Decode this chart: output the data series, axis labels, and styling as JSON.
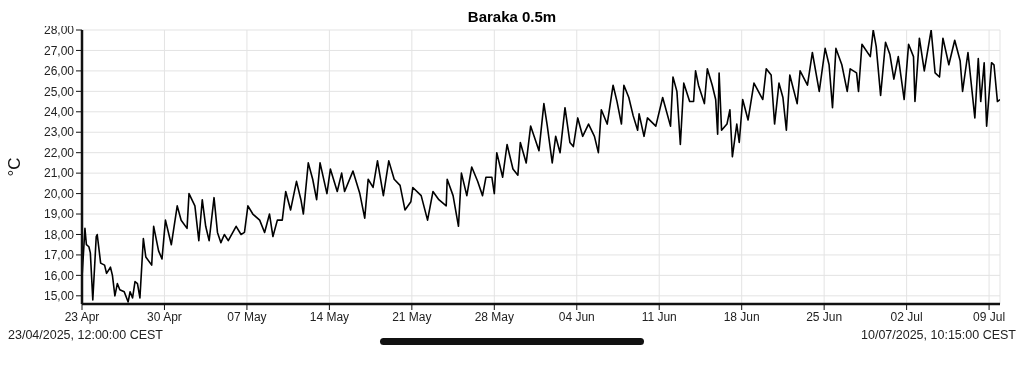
{
  "chart_data": {
    "type": "line",
    "title": "Baraka 0.5m",
    "ylabel": "°C",
    "color": "#000000",
    "grid": true,
    "annotations": [
      "23/04/2025, 12:00:00 CEST",
      "10/07/2025, 10:15:00 CEST"
    ],
    "xlim": [
      "2025-04-23T12:00",
      "2025-07-10T10:15"
    ],
    "xticks": [
      {
        "value": "2025-04-23T12:00",
        "label": "23 Apr"
      },
      {
        "value": "2025-04-30T12:00",
        "label": "30 Apr"
      },
      {
        "value": "2025-05-07T12:00",
        "label": "07 May"
      },
      {
        "value": "2025-05-14T12:00",
        "label": "14 May"
      },
      {
        "value": "2025-05-21T12:00",
        "label": "21 May"
      },
      {
        "value": "2025-05-28T12:00",
        "label": "28 May"
      },
      {
        "value": "2025-06-04T12:00",
        "label": "04 Jun"
      },
      {
        "value": "2025-06-11T12:00",
        "label": "11 Jun"
      },
      {
        "value": "2025-06-18T12:00",
        "label": "18 Jun"
      },
      {
        "value": "2025-06-25T12:00",
        "label": "25 Jun"
      },
      {
        "value": "2025-07-02T12:00",
        "label": "02 Jul"
      },
      {
        "value": "2025-07-09T12:00",
        "label": "09 Jul"
      }
    ],
    "ylim": [
      14.6,
      28
    ],
    "yticks": [
      {
        "value": 15,
        "label": "15,00"
      },
      {
        "value": 16,
        "label": "16,00"
      },
      {
        "value": 17,
        "label": "17,00"
      },
      {
        "value": 18,
        "label": "18,00"
      },
      {
        "value": 19,
        "label": "19,00"
      },
      {
        "value": 20,
        "label": "20,00"
      },
      {
        "value": 21,
        "label": "21,00"
      },
      {
        "value": 22,
        "label": "22,00"
      },
      {
        "value": 23,
        "label": "23,00"
      },
      {
        "value": 24,
        "label": "24,00"
      },
      {
        "value": 25,
        "label": "25,00"
      },
      {
        "value": 26,
        "label": "26,00"
      },
      {
        "value": 27,
        "label": "27,00"
      },
      {
        "value": 28,
        "label": "28,00"
      }
    ],
    "x": [
      "2025-04-23T12:00",
      "2025-04-23T18:00",
      "2025-04-23T21:00",
      "2025-04-24T02:00",
      "2025-04-24T05:00",
      "2025-04-24T10:00",
      "2025-04-24T17:00",
      "2025-04-24T19:00",
      "2025-04-25T02:00",
      "2025-04-25T10:00",
      "2025-04-25T14:00",
      "2025-04-25T22:00",
      "2025-04-26T02:00",
      "2025-04-26T07:00",
      "2025-04-26T12:00",
      "2025-04-26T17:00",
      "2025-04-27T02:00",
      "2025-04-27T10:00",
      "2025-04-27T14:00",
      "2025-04-27T19:00",
      "2025-04-28T00:00",
      "2025-04-28T05:00",
      "2025-04-28T10:00",
      "2025-04-28T17:00",
      "2025-04-28T22:00",
      "2025-04-29T10:00",
      "2025-04-29T14:00",
      "2025-04-30T00:00",
      "2025-04-30T07:00",
      "2025-04-30T14:00",
      "2025-05-01T02:00",
      "2025-05-01T14:00",
      "2025-05-01T22:00",
      "2025-05-02T10:00",
      "2025-05-02T14:00",
      "2025-05-03T02:00",
      "2025-05-03T10:00",
      "2025-05-03T17:00",
      "2025-05-04T00:00",
      "2025-05-04T07:00",
      "2025-05-04T17:00",
      "2025-05-05T00:00",
      "2025-05-05T07:00",
      "2025-05-05T14:00",
      "2025-05-05T22:00",
      "2025-05-06T14:00",
      "2025-05-07T00:00",
      "2025-05-07T07:00",
      "2025-05-07T14:00",
      "2025-05-08T00:00",
      "2025-05-08T14:00",
      "2025-05-09T00:00",
      "2025-05-09T10:00",
      "2025-05-09T17:00",
      "2025-05-10T02:00",
      "2025-05-10T12:00",
      "2025-05-10T19:00",
      "2025-05-11T05:00",
      "2025-05-11T17:00",
      "2025-05-12T02:00",
      "2025-05-12T07:00",
      "2025-05-12T17:00",
      "2025-05-13T02:00",
      "2025-05-13T10:00",
      "2025-05-13T17:00",
      "2025-05-14T07:00",
      "2025-05-14T14:00",
      "2025-05-15T04:00",
      "2025-05-15T13:00",
      "2025-05-15T19:00",
      "2025-05-16T12:00",
      "2025-05-17T02:00",
      "2025-05-17T12:00",
      "2025-05-17T19:00",
      "2025-05-18T05:00",
      "2025-05-18T14:00",
      "2025-05-19T02:00",
      "2025-05-19T13:00",
      "2025-05-20T00:00",
      "2025-05-20T12:00",
      "2025-05-20T22:00",
      "2025-05-21T10:00",
      "2025-05-21T14:00",
      "2025-05-22T07:00",
      "2025-05-22T20:00",
      "2025-05-23T07:00",
      "2025-05-23T19:00",
      "2025-05-24T10:00",
      "2025-05-24T12:00",
      "2025-05-25T00:00",
      "2025-05-25T11:00",
      "2025-05-25T17:00",
      "2025-05-26T04:00",
      "2025-05-26T14:00",
      "2025-05-27T02:00",
      "2025-05-27T12:00",
      "2025-05-27T19:00",
      "2025-05-28T07:00",
      "2025-05-28T12:00",
      "2025-05-28T17:00",
      "2025-05-29T05:00",
      "2025-05-29T14:00",
      "2025-05-30T02:00",
      "2025-05-30T12:00",
      "2025-05-30T17:00",
      "2025-05-31T05:00",
      "2025-05-31T14:00",
      "2025-06-01T00:00",
      "2025-06-01T07:00",
      "2025-06-01T17:00",
      "2025-06-02T00:00",
      "2025-06-02T10:00",
      "2025-06-02T17:00",
      "2025-06-03T02:00",
      "2025-06-03T12:00",
      "2025-06-03T22:00",
      "2025-06-04T05:00",
      "2025-06-04T14:00",
      "2025-06-05T00:00",
      "2025-06-05T12:00",
      "2025-06-06T00:00",
      "2025-06-06T08:00",
      "2025-06-06T14:00",
      "2025-06-07T02:00",
      "2025-06-07T14:00",
      "2025-06-07T22:00",
      "2025-06-08T07:00",
      "2025-06-08T12:00",
      "2025-06-08T22:00",
      "2025-06-09T07:00",
      "2025-06-09T16:00",
      "2025-06-09T19:00",
      "2025-06-10T05:00",
      "2025-06-10T12:00",
      "2025-06-11T05:00",
      "2025-06-11T19:00",
      "2025-06-12T11:00",
      "2025-06-12T16:00",
      "2025-06-13T00:00",
      "2025-06-13T07:00",
      "2025-06-13T14:00",
      "2025-06-14T02:00",
      "2025-06-14T10:00",
      "2025-06-14T14:00",
      "2025-06-14T20:00",
      "2025-06-15T08:00",
      "2025-06-15T14:00",
      "2025-06-16T00:00",
      "2025-06-16T07:00",
      "2025-06-16T11:00",
      "2025-06-16T14:00",
      "2025-06-16T19:00",
      "2025-06-17T06:00",
      "2025-06-17T12:00",
      "2025-06-17T17:00",
      "2025-06-18T02:00",
      "2025-06-18T07:00",
      "2025-06-18T14:00",
      "2025-06-19T01:00",
      "2025-06-19T13:00",
      "2025-06-20T07:00",
      "2025-06-20T14:00",
      "2025-06-21T00:00",
      "2025-06-21T07:00",
      "2025-06-21T16:00",
      "2025-06-22T00:00",
      "2025-06-22T07:00",
      "2025-06-22T14:00",
      "2025-06-23T05:00",
      "2025-06-23T11:00",
      "2025-06-24T02:00",
      "2025-06-24T12:00",
      "2025-06-25T02:00",
      "2025-06-25T14:00",
      "2025-06-25T22:00",
      "2025-06-26T05:00",
      "2025-06-26T12:00",
      "2025-06-27T00:00",
      "2025-06-27T11:00",
      "2025-06-27T17:00",
      "2025-06-28T06:00",
      "2025-06-28T10:00",
      "2025-06-28T17:00",
      "2025-06-29T10:00",
      "2025-06-29T16:00",
      "2025-06-29T22:00",
      "2025-06-30T07:00",
      "2025-06-30T17:00",
      "2025-07-01T02:00",
      "2025-07-01T10:00",
      "2025-07-01T19:00",
      "2025-07-02T07:00",
      "2025-07-02T16:00",
      "2025-07-03T02:00",
      "2025-07-03T05:00",
      "2025-07-03T14:00",
      "2025-07-04T00:00",
      "2025-07-04T14:00",
      "2025-07-04T22:00",
      "2025-07-05T07:00",
      "2025-07-05T14:00",
      "2025-07-06T02:00",
      "2025-07-06T14:00",
      "2025-07-07T01:00",
      "2025-07-07T06:00",
      "2025-07-07T17:00",
      "2025-07-08T07:00",
      "2025-07-08T14:00",
      "2025-07-08T19:00",
      "2025-07-09T02:00",
      "2025-07-09T07:00",
      "2025-07-09T17:00",
      "2025-07-09T22:00",
      "2025-07-10T05:00",
      "2025-07-10T10:15"
    ],
    "values": [
      15.9,
      18.3,
      17.5,
      17.4,
      17.1,
      14.8,
      17.9,
      18.0,
      16.6,
      16.5,
      16.1,
      16.4,
      16.0,
      15.0,
      15.6,
      15.3,
      15.2,
      14.7,
      15.2,
      14.9,
      15.7,
      15.6,
      14.9,
      17.8,
      16.9,
      16.5,
      18.4,
      17.2,
      16.8,
      18.7,
      17.5,
      19.4,
      18.7,
      18.3,
      20.0,
      19.4,
      17.7,
      19.7,
      18.4,
      17.7,
      19.8,
      18.1,
      17.6,
      18.0,
      17.7,
      18.4,
      18.0,
      18.1,
      19.4,
      19.0,
      18.7,
      18.1,
      19.0,
      17.9,
      18.7,
      18.7,
      20.1,
      19.2,
      20.6,
      19.7,
      19.0,
      21.5,
      20.7,
      19.7,
      21.5,
      20.0,
      21.2,
      20.1,
      21.0,
      20.1,
      21.1,
      20.0,
      18.8,
      20.7,
      20.3,
      21.6,
      19.9,
      21.6,
      20.7,
      20.4,
      19.2,
      19.6,
      20.3,
      19.9,
      18.7,
      20.1,
      19.7,
      19.4,
      20.7,
      19.9,
      18.4,
      21.0,
      19.9,
      21.3,
      20.6,
      19.9,
      20.8,
      20.8,
      20.0,
      22.0,
      20.8,
      22.4,
      21.2,
      20.9,
      22.5,
      21.5,
      23.3,
      22.6,
      22.1,
      24.4,
      23.3,
      21.5,
      22.8,
      22.0,
      24.2,
      22.5,
      22.3,
      23.7,
      22.8,
      23.4,
      22.8,
      22.0,
      24.1,
      23.4,
      25.3,
      24.5,
      23.4,
      25.3,
      24.7,
      23.8,
      23.1,
      23.9,
      22.8,
      23.7,
      23.3,
      24.7,
      23.3,
      25.7,
      25.0,
      22.4,
      25.4,
      24.5,
      24.5,
      26.0,
      25.3,
      24.4,
      26.1,
      25.3,
      24.6,
      22.9,
      25.9,
      23.1,
      23.4,
      24.1,
      21.8,
      23.4,
      22.5,
      24.6,
      23.6,
      25.4,
      24.6,
      26.1,
      25.8,
      23.4,
      25.4,
      24.7,
      23.1,
      25.8,
      24.4,
      26.0,
      25.3,
      26.9,
      25.0,
      27.1,
      26.3,
      24.2,
      27.1,
      26.3,
      25.0,
      26.1,
      25.9,
      25.0,
      27.3,
      26.7,
      28.0,
      27.2,
      24.8,
      27.4,
      26.8,
      25.6,
      26.7,
      24.6,
      27.3,
      26.7,
      24.5,
      27.6,
      26.0,
      28.0,
      25.9,
      25.7,
      27.6,
      26.3,
      27.5,
      26.5,
      25.0,
      26.9,
      23.7,
      26.6,
      24.5,
      26.4,
      23.3,
      26.4,
      26.3,
      24.5,
      24.6
    ]
  }
}
